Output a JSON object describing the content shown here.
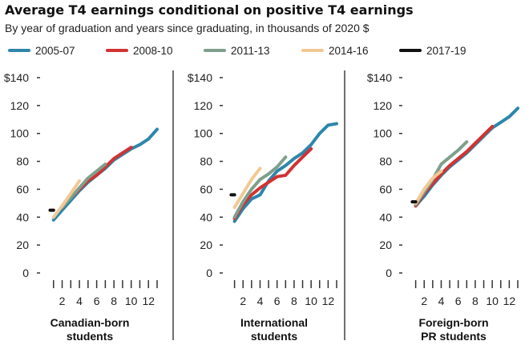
{
  "title": "Average T4 earnings conditional on positive T4 earnings",
  "subtitle": "By year of graduation and years since graduating, in thousands of 2020 $",
  "colors": {
    "2005-07": "#2e86ab",
    "2008-10": "#d23232",
    "2011-13": "#7f9f8c",
    "2014-16": "#f2c994",
    "2017-19": "#111111"
  },
  "legend": [
    "2005-07",
    "2008-10",
    "2011-13",
    "2014-16",
    "2017-19"
  ],
  "chart_data": [
    {
      "type": "line",
      "panel_label": [
        "Canadian-born",
        "students"
      ],
      "ylim": [
        0,
        140
      ],
      "y_ticks": [
        "$140",
        "120",
        "100",
        "80",
        "60",
        "40",
        "20",
        "0"
      ],
      "x_tick_labels": [
        "2",
        "4",
        "6",
        "8",
        "10",
        "12"
      ],
      "x_range": [
        0,
        13
      ],
      "series": [
        {
          "name": "2005-07",
          "x": [
            1,
            2,
            3,
            4,
            5,
            6,
            7,
            8,
            9,
            10,
            11,
            12,
            13
          ],
          "y": [
            38,
            45,
            52,
            59,
            65,
            70,
            75,
            81,
            85,
            89,
            92,
            96,
            103
          ]
        },
        {
          "name": "2008-10",
          "x": [
            2,
            3,
            4,
            5,
            6,
            7,
            8,
            9,
            10
          ],
          "y": [
            47,
            54,
            60,
            66,
            70,
            76,
            82,
            86,
            90
          ]
        },
        {
          "name": "2011-13",
          "x": [
            2,
            3,
            4,
            5,
            6,
            7
          ],
          "y": [
            47,
            54,
            61,
            68,
            73,
            78
          ]
        },
        {
          "name": "2014-16",
          "x": [
            1,
            2,
            3,
            4
          ],
          "y": [
            40,
            48,
            57,
            66
          ]
        },
        {
          "name": "2017-19",
          "x": [
            0.6,
            1
          ],
          "y": [
            45,
            45
          ]
        }
      ]
    },
    {
      "type": "line",
      "panel_label": [
        "International",
        "students"
      ],
      "ylim": [
        0,
        140
      ],
      "y_ticks": [
        "$140",
        "120",
        "100",
        "80",
        "60",
        "40",
        "20",
        "0"
      ],
      "x_tick_labels": [
        "2",
        "4",
        "6",
        "8",
        "10",
        "12"
      ],
      "x_range": [
        0,
        13
      ],
      "series": [
        {
          "name": "2005-07",
          "x": [
            1,
            2,
            3,
            4,
            5,
            6,
            7,
            8,
            9,
            10,
            11,
            12,
            13
          ],
          "y": [
            37,
            46,
            53,
            56,
            66,
            73,
            77,
            82,
            86,
            92,
            100,
            106,
            107
          ]
        },
        {
          "name": "2008-10",
          "x": [
            1,
            2,
            3,
            4,
            5,
            6,
            7,
            8,
            9,
            10
          ],
          "y": [
            39,
            49,
            56,
            61,
            65,
            69,
            70,
            77,
            83,
            89
          ]
        },
        {
          "name": "2011-13",
          "x": [
            1,
            2,
            3,
            4,
            5,
            6,
            7
          ],
          "y": [
            40,
            51,
            60,
            67,
            71,
            76,
            83
          ]
        },
        {
          "name": "2014-16",
          "x": [
            1,
            2,
            3,
            4
          ],
          "y": [
            47,
            57,
            67,
            75
          ]
        },
        {
          "name": "2017-19",
          "x": [
            0.6,
            1
          ],
          "y": [
            56,
            56
          ]
        }
      ]
    },
    {
      "type": "line",
      "panel_label": [
        "Foreign-born",
        "PR students"
      ],
      "ylim": [
        0,
        140
      ],
      "y_ticks": [
        "$140",
        "120",
        "100",
        "80",
        "60",
        "40",
        "20",
        "0"
      ],
      "x_tick_labels": [
        "2",
        "4",
        "6",
        "8",
        "10",
        "12"
      ],
      "x_range": [
        0,
        13
      ],
      "series": [
        {
          "name": "2005-07",
          "x": [
            1,
            2,
            3,
            4,
            5,
            6,
            7,
            8,
            9,
            10,
            11,
            12,
            13
          ],
          "y": [
            48,
            55,
            63,
            70,
            76,
            81,
            86,
            92,
            98,
            104,
            108,
            112,
            118
          ]
        },
        {
          "name": "2008-10",
          "x": [
            1,
            2,
            3,
            4,
            5,
            6,
            7,
            8,
            9,
            10
          ],
          "y": [
            48,
            57,
            64,
            71,
            77,
            82,
            87,
            93,
            99,
            105
          ]
        },
        {
          "name": "2011-13",
          "x": [
            1,
            2,
            3,
            4,
            5,
            6,
            7
          ],
          "y": [
            49,
            58,
            67,
            78,
            83,
            88,
            94
          ]
        },
        {
          "name": "2014-16",
          "x": [
            1,
            2,
            3,
            4
          ],
          "y": [
            50,
            60,
            68,
            73
          ]
        },
        {
          "name": "2017-19",
          "x": [
            0.6,
            1
          ],
          "y": [
            51,
            51
          ]
        }
      ]
    }
  ]
}
